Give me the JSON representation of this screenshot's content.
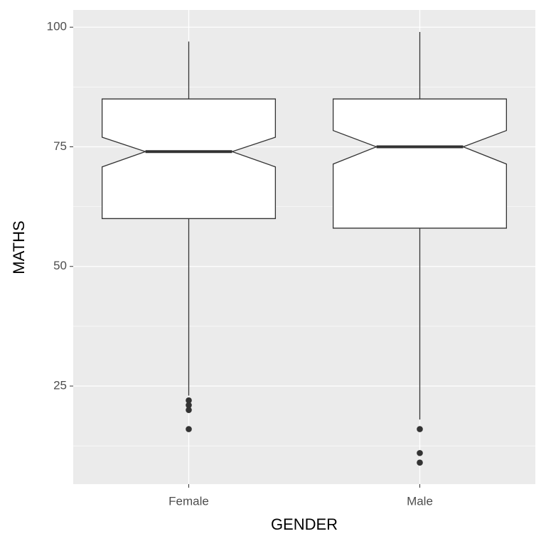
{
  "chart_data": {
    "type": "boxplot",
    "x_label": "GENDER",
    "y_label": "MATHS",
    "categories": [
      "Female",
      "Male"
    ],
    "boxes": [
      {
        "whisker_low": 23,
        "q1": 60,
        "notch_low": 70.8,
        "median": 74,
        "notch_high": 77,
        "q3": 85,
        "whisker_high": 97,
        "outliers": [
          22,
          21,
          20,
          16
        ]
      },
      {
        "whisker_low": 18,
        "q1": 58,
        "notch_low": 71.4,
        "median": 75,
        "notch_high": 78.4,
        "q3": 85,
        "whisker_high": 99,
        "outliers": [
          16,
          11,
          9
        ]
      }
    ],
    "ylim": [
      4.5,
      103.6
    ],
    "yticks": [
      25,
      50,
      75,
      100
    ],
    "grid": true
  }
}
